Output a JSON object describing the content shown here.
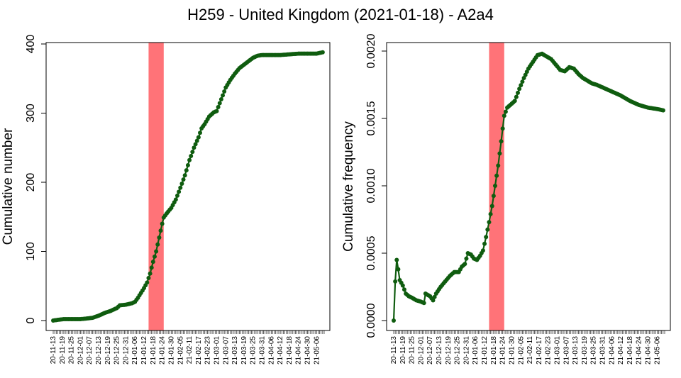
{
  "title": "H259 - United Kingdom (2021-01-18) - A2a4",
  "colors": {
    "line": "#0f5c0f",
    "highlight": "#ff7378",
    "axis": "#000000"
  },
  "chart_data": [
    {
      "type": "line",
      "ylabel": "Cumulative number",
      "ylim": [
        0,
        400
      ],
      "yticks": [
        "0",
        "100",
        "200",
        "300",
        "400"
      ],
      "highlight_range": [
        "2021-01-15",
        "2021-01-25"
      ],
      "x_range": [
        "2020-11-13",
        "2021-05-11"
      ],
      "xtick_labels": [
        "20-11-13",
        "20-11-19",
        "20-11-25",
        "20-12-01",
        "20-12-07",
        "20-12-13",
        "20-12-19",
        "20-12-25",
        "20-12-31",
        "21-01-06",
        "21-01-12",
        "21-01-18",
        "21-01-24",
        "21-01-30",
        "21-02-05",
        "21-02-11",
        "21-02-17",
        "21-02-23",
        "21-03-01",
        "21-03-07",
        "21-03-13",
        "21-03-19",
        "21-03-25",
        "21-03-31",
        "21-04-06",
        "21-04-12",
        "21-04-18",
        "21-04-24",
        "21-04-30",
        "21-05-06"
      ],
      "series": [
        {
          "points": [
            [
              "2020-11-13",
              0
            ],
            [
              "2020-11-16",
              1
            ],
            [
              "2020-11-20",
              2
            ],
            [
              "2020-11-25",
              2
            ],
            [
              "2020-12-01",
              2
            ],
            [
              "2020-12-05",
              3
            ],
            [
              "2020-12-09",
              4
            ],
            [
              "2020-12-13",
              7
            ],
            [
              "2020-12-17",
              11
            ],
            [
              "2020-12-21",
              14
            ],
            [
              "2020-12-25",
              18
            ],
            [
              "2020-12-27",
              22
            ],
            [
              "2020-12-31",
              23
            ],
            [
              "2021-01-04",
              25
            ],
            [
              "2021-01-06",
              27
            ],
            [
              "2021-01-08",
              33
            ],
            [
              "2021-01-10",
              40
            ],
            [
              "2021-01-12",
              47
            ],
            [
              "2021-01-14",
              55
            ],
            [
              "2021-01-16",
              68
            ],
            [
              "2021-01-18",
              85
            ],
            [
              "2021-01-20",
              100
            ],
            [
              "2021-01-22",
              120
            ],
            [
              "2021-01-24",
              140
            ],
            [
              "2021-01-25",
              149
            ],
            [
              "2021-01-27",
              155
            ],
            [
              "2021-01-30",
              163
            ],
            [
              "2021-02-02",
              175
            ],
            [
              "2021-02-05",
              192
            ],
            [
              "2021-02-08",
              210
            ],
            [
              "2021-02-11",
              232
            ],
            [
              "2021-02-14",
              250
            ],
            [
              "2021-02-17",
              265
            ],
            [
              "2021-02-19",
              278
            ],
            [
              "2021-02-21",
              284
            ],
            [
              "2021-02-24",
              295
            ],
            [
              "2021-02-27",
              301
            ],
            [
              "2021-03-01",
              303
            ],
            [
              "2021-03-04",
              320
            ],
            [
              "2021-03-07",
              337
            ],
            [
              "2021-03-10",
              348
            ],
            [
              "2021-03-13",
              357
            ],
            [
              "2021-03-16",
              365
            ],
            [
              "2021-03-19",
              370
            ],
            [
              "2021-03-22",
              375
            ],
            [
              "2021-03-25",
              380
            ],
            [
              "2021-03-28",
              383
            ],
            [
              "2021-03-31",
              384
            ],
            [
              "2021-04-06",
              384
            ],
            [
              "2021-04-12",
              384
            ],
            [
              "2021-04-18",
              385
            ],
            [
              "2021-04-24",
              386
            ],
            [
              "2021-04-30",
              386
            ],
            [
              "2021-05-06",
              386
            ],
            [
              "2021-05-10",
              388
            ]
          ]
        }
      ]
    },
    {
      "type": "line",
      "ylabel": "Cumulative frequency",
      "ylim": [
        0,
        0.002
      ],
      "yticks": [
        "0.0000",
        "0.0005",
        "0.0010",
        "0.0015",
        "0.0020"
      ],
      "highlight_range": [
        "2021-01-15",
        "2021-01-25"
      ],
      "x_range": [
        "2020-11-13",
        "2021-05-11"
      ],
      "xtick_labels": [
        "20-11-13",
        "20-11-19",
        "20-11-25",
        "20-12-01",
        "20-12-07",
        "20-12-13",
        "20-12-19",
        "20-12-25",
        "20-12-31",
        "21-01-06",
        "21-01-12",
        "21-01-18",
        "21-01-24",
        "21-01-30",
        "21-02-05",
        "21-02-11",
        "21-02-17",
        "21-02-23",
        "21-03-01",
        "21-03-07",
        "21-03-13",
        "21-03-19",
        "21-03-25",
        "21-03-31",
        "21-04-06",
        "21-04-12",
        "21-04-18",
        "21-04-24",
        "21-04-30",
        "21-05-06"
      ],
      "series": [
        {
          "points": [
            [
              "2020-11-13",
              0.0
            ],
            [
              "2020-11-14",
              0.00029
            ],
            [
              "2020-11-15",
              0.00045
            ],
            [
              "2020-11-16",
              0.00038
            ],
            [
              "2020-11-17",
              0.0003
            ],
            [
              "2020-11-19",
              0.00026
            ],
            [
              "2020-11-21",
              0.0002
            ],
            [
              "2020-11-23",
              0.00018
            ],
            [
              "2020-11-25",
              0.00017
            ],
            [
              "2020-11-28",
              0.00015
            ],
            [
              "2020-12-01",
              0.00014
            ],
            [
              "2020-12-03",
              0.00013
            ],
            [
              "2020-12-04",
              0.0002
            ],
            [
              "2020-12-07",
              0.00018
            ],
            [
              "2020-12-09",
              0.00015
            ],
            [
              "2020-12-11",
              0.0002
            ],
            [
              "2020-12-14",
              0.00025
            ],
            [
              "2020-12-17",
              0.00029
            ],
            [
              "2020-12-20",
              0.00033
            ],
            [
              "2020-12-23",
              0.00036
            ],
            [
              "2020-12-26",
              0.00036
            ],
            [
              "2020-12-28",
              0.0004
            ],
            [
              "2020-12-30",
              0.00042
            ],
            [
              "2021-01-01",
              0.0005
            ],
            [
              "2021-01-03",
              0.00049
            ],
            [
              "2021-01-05",
              0.00046
            ],
            [
              "2021-01-07",
              0.00045
            ],
            [
              "2021-01-09",
              0.00048
            ],
            [
              "2021-01-11",
              0.00052
            ],
            [
              "2021-01-13",
              0.00062
            ],
            [
              "2021-01-15",
              0.00073
            ],
            [
              "2021-01-17",
              0.00085
            ],
            [
              "2021-01-19",
              0.001
            ],
            [
              "2021-01-21",
              0.00115
            ],
            [
              "2021-01-23",
              0.00133
            ],
            [
              "2021-01-25",
              0.00152
            ],
            [
              "2021-01-27",
              0.00158
            ],
            [
              "2021-01-29",
              0.0016
            ],
            [
              "2021-02-01",
              0.00163
            ],
            [
              "2021-02-04",
              0.00172
            ],
            [
              "2021-02-07",
              0.0018
            ],
            [
              "2021-02-10",
              0.00187
            ],
            [
              "2021-02-13",
              0.00192
            ],
            [
              "2021-02-16",
              0.00197
            ],
            [
              "2021-02-19",
              0.00198
            ],
            [
              "2021-02-22",
              0.00196
            ],
            [
              "2021-02-25",
              0.00194
            ],
            [
              "2021-02-28",
              0.0019
            ],
            [
              "2021-03-03",
              0.00186
            ],
            [
              "2021-03-06",
              0.00185
            ],
            [
              "2021-03-09",
              0.00188
            ],
            [
              "2021-03-12",
              0.00187
            ],
            [
              "2021-03-15",
              0.00183
            ],
            [
              "2021-03-18",
              0.0018
            ],
            [
              "2021-03-21",
              0.00178
            ],
            [
              "2021-03-24",
              0.00176
            ],
            [
              "2021-03-27",
              0.00175
            ],
            [
              "2021-03-31",
              0.00173
            ],
            [
              "2021-04-06",
              0.0017
            ],
            [
              "2021-04-12",
              0.00167
            ],
            [
              "2021-04-18",
              0.00163
            ],
            [
              "2021-04-24",
              0.0016
            ],
            [
              "2021-04-30",
              0.00158
            ],
            [
              "2021-05-06",
              0.00157
            ],
            [
              "2021-05-10",
              0.00156
            ]
          ]
        }
      ]
    }
  ]
}
